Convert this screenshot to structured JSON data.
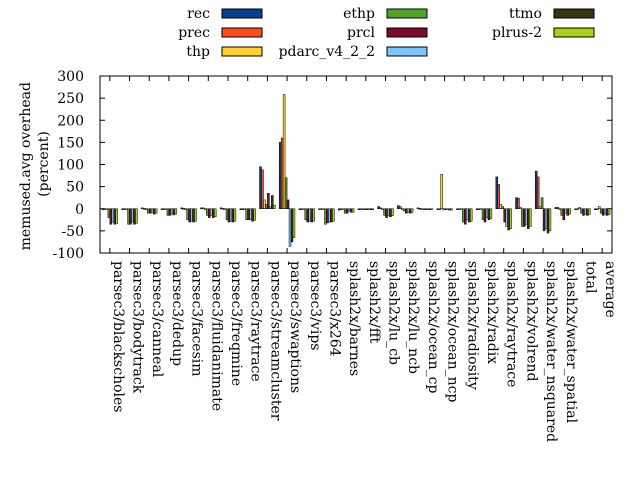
{
  "chart_data": {
    "type": "bar",
    "ylabel": "memused.avg overhead\n(percent)",
    "ylim": [
      -100,
      300
    ],
    "yticks": [
      -100,
      -50,
      0,
      50,
      100,
      150,
      200,
      250,
      300
    ],
    "grid": false,
    "legend_position": "top",
    "categories": [
      "parsec3/blackscholes",
      "parsec3/bodytrack",
      "parsec3/canneal",
      "parsec3/dedup",
      "parsec3/facesim",
      "parsec3/fluidanimate",
      "parsec3/freqmine",
      "parsec3/raytrace",
      "parsec3/streamcluster",
      "parsec3/swaptions",
      "parsec3/vips",
      "parsec3/x264",
      "splash2x/barnes",
      "splash2x/fft",
      "splash2x/lu_cb",
      "splash2x/lu_ncb",
      "splash2x/ocean_cp",
      "splash2x/ocean_ncp",
      "splash2x/radiosity",
      "splash2x/radix",
      "splash2x/raytrace",
      "splash2x/volrend",
      "splash2x/water_nsquared",
      "splash2x/water_spatial",
      "total",
      "average"
    ],
    "series": [
      {
        "name": "rec",
        "color": "#0b3d8f",
        "values": [
          0,
          -2,
          2,
          -1,
          2,
          2,
          2,
          -1,
          95,
          150,
          0,
          0,
          -3,
          0,
          5,
          7,
          2,
          0,
          0,
          0,
          72,
          25,
          85,
          3,
          0,
          0
        ]
      },
      {
        "name": "prec",
        "color": "#ff4a1c",
        "values": [
          0,
          -2,
          1,
          -1,
          1,
          2,
          1,
          -1,
          88,
          160,
          0,
          -2,
          -2,
          0,
          2,
          5,
          1,
          0,
          0,
          0,
          55,
          24,
          72,
          3,
          0,
          0
        ]
      },
      {
        "name": "thp",
        "color": "#ffd22e",
        "values": [
          0,
          -2,
          0,
          -1,
          0,
          0,
          0,
          -2,
          20,
          258,
          0,
          -1,
          -1,
          0,
          0,
          0,
          0,
          78,
          0,
          0,
          10,
          3,
          5,
          0,
          3,
          5
        ]
      },
      {
        "name": "ethp",
        "color": "#52a32a",
        "values": [
          -20,
          -35,
          -10,
          -15,
          -25,
          -15,
          -25,
          -25,
          10,
          70,
          -25,
          -35,
          -10,
          0,
          -15,
          -5,
          0,
          0,
          -30,
          -25,
          5,
          -40,
          25,
          -15,
          -10,
          -10
        ]
      },
      {
        "name": "prcl",
        "color": "#7e0a30",
        "values": [
          -35,
          -35,
          -10,
          -15,
          -30,
          -20,
          -30,
          -25,
          35,
          20,
          -30,
          -32,
          -10,
          0,
          -20,
          -10,
          0,
          0,
          -35,
          -30,
          -30,
          -40,
          -50,
          -25,
          -15,
          -15
        ]
      },
      {
        "name": "pdarc_v4_2_2",
        "color": "#7ec4ff",
        "values": [
          -30,
          -30,
          -8,
          -12,
          -28,
          -15,
          -28,
          -25,
          5,
          -85,
          -28,
          -30,
          -5,
          0,
          -15,
          -8,
          0,
          0,
          -25,
          -20,
          -40,
          -35,
          -45,
          -10,
          -12,
          -12
        ]
      },
      {
        "name": "ttmo",
        "color": "#353515",
        "values": [
          -35,
          -35,
          -12,
          -14,
          -30,
          -20,
          -30,
          -28,
          30,
          -75,
          -30,
          -30,
          -8,
          -2,
          -18,
          -10,
          -2,
          -3,
          -30,
          -25,
          -48,
          -45,
          -55,
          -15,
          -15,
          -15
        ]
      },
      {
        "name": "plrus-2",
        "color": "#a9d11a",
        "values": [
          -33,
          -33,
          -10,
          -12,
          -28,
          -18,
          -28,
          -26,
          8,
          -65,
          -28,
          -28,
          -8,
          -2,
          -16,
          -8,
          -2,
          -3,
          -28,
          -22,
          -45,
          -40,
          -50,
          -12,
          -13,
          -13
        ]
      }
    ]
  }
}
